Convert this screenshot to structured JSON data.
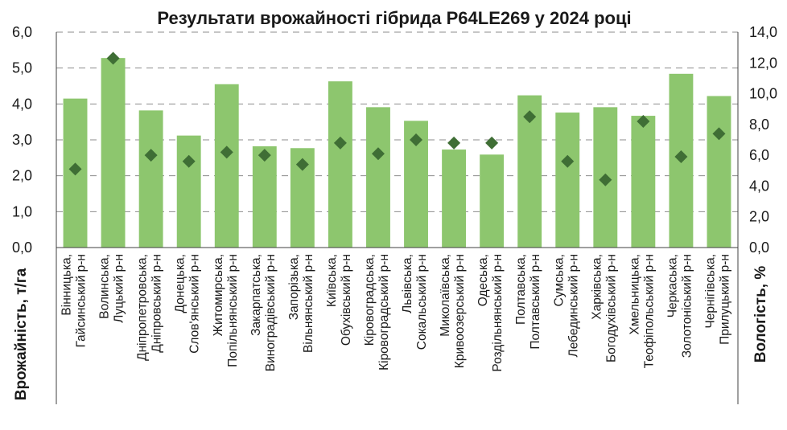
{
  "chart_data": {
    "type": "bar",
    "title": "Результати врожайності гібрида P64LE269 у 2024 році",
    "ylabel": "Врожайність, т/га",
    "y2label": "Вологість, %",
    "ylim": [
      0,
      6
    ],
    "y2lim": [
      0,
      14
    ],
    "yticks": [
      "0,0",
      "1,0",
      "2,0",
      "3,0",
      "4,0",
      "5,0",
      "6,0"
    ],
    "y2ticks": [
      "0,0",
      "2,0",
      "4,0",
      "6,0",
      "8,0",
      "10,0",
      "12,0",
      "14,0"
    ],
    "grid": true,
    "categories": [
      [
        "Вінницька,",
        "Гайсинський р-н"
      ],
      [
        "Волинська,",
        "Луцький р-н"
      ],
      [
        "Дніпропетровська,",
        "Дніпровський р-н"
      ],
      [
        "Донецька,",
        "Слов'янський р-н"
      ],
      [
        "Житомирська,",
        "Попільнянський р-н"
      ],
      [
        "Закарпатська,",
        "Виноградівський р-н"
      ],
      [
        "Запорізька,",
        "Вільнянський р-н"
      ],
      [
        "Київська,",
        "Обухівський р-н"
      ],
      [
        "Кіровоградська,",
        "Кіровоградський р-н"
      ],
      [
        "Львівська,",
        "Сокальський р-н"
      ],
      [
        "Миколаївська,",
        "Кривоозерський р-н"
      ],
      [
        "Одеська,",
        "Роздільнянський р-н"
      ],
      [
        "Полтавська,",
        "Полтавський р-н"
      ],
      [
        "Сумська,",
        "Лебединський р-н"
      ],
      [
        "Харківська,",
        "Богодухівський р-н"
      ],
      [
        "Хмельницька,",
        "Теофіпольський р-н"
      ],
      [
        "Черкаська,",
        "Золотоніський р-н"
      ],
      [
        "Чернігівська,",
        "Прилуцький р-н"
      ]
    ],
    "series": [
      {
        "name": "Врожайність, т/га",
        "type": "bar",
        "axis": "left",
        "color": "#8dc66e",
        "values": [
          4.15,
          5.28,
          3.82,
          3.12,
          4.55,
          2.82,
          2.77,
          4.63,
          3.91,
          3.53,
          2.73,
          2.59,
          4.24,
          3.76,
          3.91,
          3.67,
          4.84,
          4.22
        ]
      },
      {
        "name": "Вологість, %",
        "type": "scatter",
        "axis": "right",
        "color": "#3f6e35",
        "values": [
          5.1,
          12.3,
          6.0,
          5.6,
          6.2,
          6.0,
          5.4,
          6.8,
          6.1,
          7.0,
          6.8,
          6.8,
          8.5,
          5.6,
          4.4,
          8.2,
          5.9,
          7.4
        ]
      }
    ]
  }
}
